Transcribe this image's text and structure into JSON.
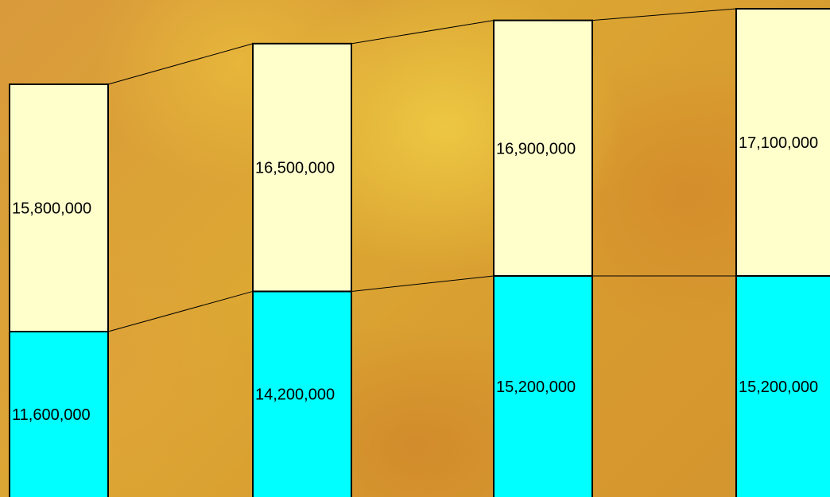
{
  "chart_data": {
    "type": "bar",
    "stacked": true,
    "categories": [
      "",
      "",
      "",
      ""
    ],
    "series": [
      {
        "values": [
          11600000,
          14200000,
          15200000,
          15200000
        ]
      },
      {
        "values": [
          15800000,
          16500000,
          16900000,
          17100000
        ]
      }
    ],
    "data_labels": [
      [
        "11,600,000",
        "14,200,000",
        "15,200,000",
        "15,200,000"
      ],
      [
        "15,800,000",
        "16,500,000",
        "16,900,000",
        "17,100,000"
      ]
    ],
    "series_colors": [
      "#00ffff",
      "#ffffcc"
    ],
    "connector_lines": true,
    "title": "",
    "xlabel": "",
    "ylabel": "",
    "grid": false,
    "legend": "none"
  }
}
